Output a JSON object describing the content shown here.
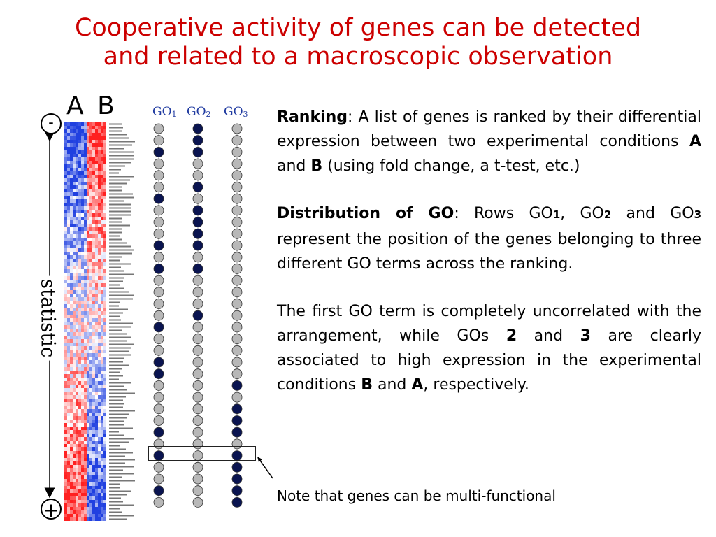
{
  "title": {
    "line1": "Cooperative activity of genes can be detected",
    "line2": "and related to a macroscopic observation"
  },
  "diagram": {
    "label_a": "A",
    "label_b": "B",
    "go_headers": [
      {
        "prefix": "GO",
        "num": "1"
      },
      {
        "prefix": "GO",
        "num": "2"
      },
      {
        "prefix": "GO",
        "num": "3"
      }
    ],
    "minus": "-",
    "plus": "+",
    "axis_label": "statistic",
    "row_count": 33,
    "highlight_row": 28,
    "go_membership": {
      "GO1": [
        2,
        6,
        10,
        12,
        17,
        20,
        21,
        26,
        28,
        31
      ],
      "GO2": [
        0,
        1,
        2,
        5,
        7,
        8,
        9,
        10,
        12,
        16
      ],
      "GO3": [
        22,
        24,
        25,
        26,
        28,
        29,
        30,
        31,
        32
      ]
    },
    "colors": {
      "member": "#0a1450",
      "nonmember": "#b8b8b8",
      "high_a": "#ff2020",
      "high_b": "#2040e0",
      "neutral": "#ffffff"
    }
  },
  "text": {
    "p1_term": "Ranking",
    "p1_a": ": A list of genes is ranked by their differential expression between two experimental conditions ",
    "p1_cond_a": "A",
    "p1_b": " and ",
    "p1_cond_b": "B",
    "p1_c": " (using fold change, a t-test, etc.)",
    "p2_term": "Distribution of GO",
    "p2_a": ": Rows GO",
    "p2_n1": "1",
    "p2_b": ", GO",
    "p2_n2": "2",
    "p2_c": " and GO",
    "p2_n3": "3",
    "p2_d": " represent the position of the genes belonging to three different GO terms across the ranking.",
    "p3_a": "The first GO term is completely uncorrelated with the arrangement, while GOs ",
    "p3_n2": "2",
    "p3_b": " and ",
    "p3_n3": "3",
    "p3_c": " are clearly associated to high expression in the experimental conditions ",
    "p3_cond_b": "B",
    "p3_d": " and ",
    "p3_cond_a": "A",
    "p3_e": ", respectively.",
    "note": "Note that genes can be multi-functional"
  }
}
